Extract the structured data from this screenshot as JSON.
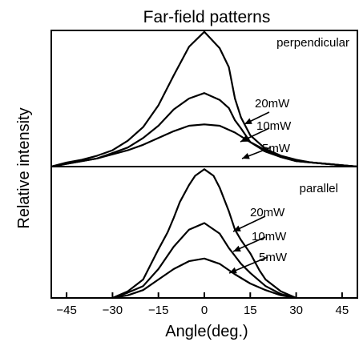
{
  "chart_data": {
    "type": "line",
    "title": "Far-field patterns",
    "xlabel": "Angle(deg.)",
    "ylabel": "Relative intensity",
    "xlim": [
      -50,
      50
    ],
    "x_ticks": [
      -45,
      -30,
      -15,
      0,
      15,
      30,
      45
    ],
    "x_tick_labels": [
      "−45",
      "−30",
      "−15",
      "0",
      "15",
      "30",
      "45"
    ],
    "grid": false,
    "panels": [
      {
        "name": "perpendicular",
        "ylim": [
          0,
          1
        ],
        "series": [
          {
            "name": "20mW",
            "x": [
              -50,
              -45,
              -40,
              -35,
              -30,
              -25,
              -20,
              -15,
              -10,
              -5,
              0,
              5,
              8,
              10,
              12,
              15,
              20,
              25,
              30,
              35,
              40,
              45,
              50
            ],
            "y": [
              0.0,
              0.03,
              0.05,
              0.08,
              0.12,
              0.19,
              0.29,
              0.45,
              0.67,
              0.88,
              0.99,
              0.87,
              0.73,
              0.5,
              0.36,
              0.23,
              0.13,
              0.08,
              0.05,
              0.03,
              0.02,
              0.01,
              0.0
            ]
          },
          {
            "name": "10mW",
            "x": [
              -50,
              -45,
              -40,
              -35,
              -30,
              -25,
              -20,
              -15,
              -10,
              -5,
              0,
              5,
              8,
              10,
              12,
              15,
              20,
              25,
              30,
              35,
              40,
              45,
              50
            ],
            "y": [
              0.0,
              0.02,
              0.04,
              0.06,
              0.1,
              0.14,
              0.21,
              0.3,
              0.42,
              0.5,
              0.54,
              0.49,
              0.43,
              0.34,
              0.28,
              0.18,
              0.11,
              0.07,
              0.04,
              0.03,
              0.02,
              0.01,
              0.0
            ]
          },
          {
            "name": "5mW",
            "x": [
              -50,
              -45,
              -40,
              -35,
              -30,
              -25,
              -20,
              -15,
              -10,
              -5,
              0,
              5,
              10,
              15,
              20,
              25,
              30,
              35,
              40,
              45,
              50
            ],
            "y": [
              0.0,
              0.02,
              0.04,
              0.06,
              0.09,
              0.12,
              0.16,
              0.21,
              0.26,
              0.3,
              0.31,
              0.3,
              0.25,
              0.18,
              0.12,
              0.07,
              0.04,
              0.03,
              0.02,
              0.01,
              0.0
            ]
          }
        ]
      },
      {
        "name": "parallel",
        "ylim": [
          0,
          1
        ],
        "series": [
          {
            "name": "20mW",
            "x": [
              -30,
              -25,
              -20,
              -15,
              -12,
              -10,
              -8,
              -5,
              -3,
              0,
              3,
              5,
              8,
              10,
              12,
              15,
              18,
              20,
              25,
              30
            ],
            "y": [
              0.0,
              0.05,
              0.14,
              0.37,
              0.5,
              0.61,
              0.73,
              0.86,
              0.93,
              0.98,
              0.93,
              0.84,
              0.66,
              0.52,
              0.44,
              0.34,
              0.21,
              0.14,
              0.05,
              0.0
            ]
          },
          {
            "name": "10mW",
            "x": [
              -30,
              -25,
              -20,
              -15,
              -10,
              -5,
              0,
              5,
              8,
              10,
              12,
              15,
              18,
              20,
              25,
              30
            ],
            "y": [
              0.0,
              0.04,
              0.09,
              0.22,
              0.39,
              0.52,
              0.57,
              0.49,
              0.38,
              0.32,
              0.26,
              0.19,
              0.13,
              0.09,
              0.03,
              0.0
            ]
          },
          {
            "name": "5mW",
            "x": [
              -30,
              -25,
              -20,
              -15,
              -10,
              -5,
              0,
              5,
              10,
              15,
              20,
              25,
              30
            ],
            "y": [
              0.0,
              0.02,
              0.06,
              0.14,
              0.22,
              0.28,
              0.3,
              0.26,
              0.18,
              0.11,
              0.06,
              0.02,
              0.0
            ]
          }
        ]
      }
    ]
  }
}
